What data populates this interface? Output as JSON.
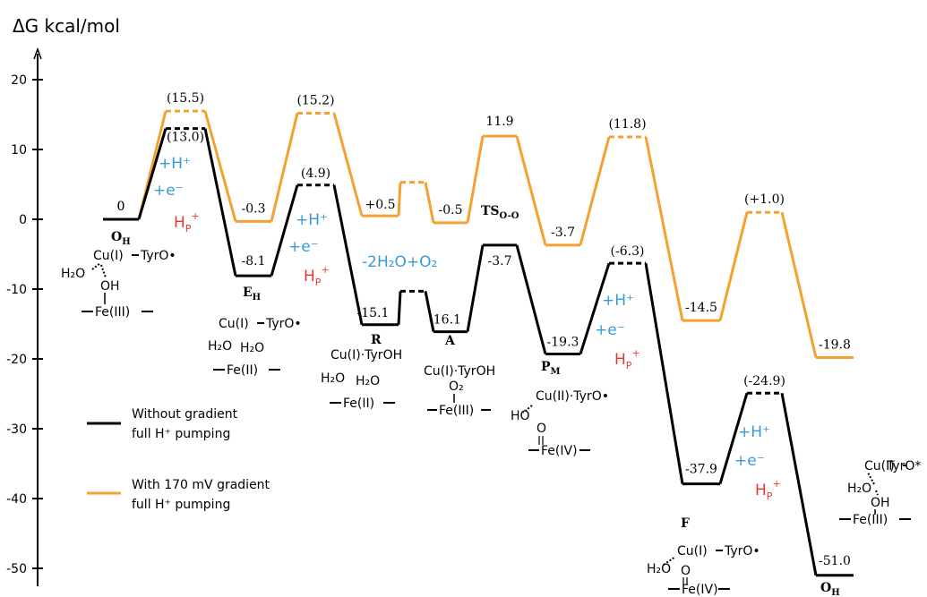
{
  "chart_data": {
    "type": "line",
    "ylabel": "ΔG kcal/mol",
    "ylim": [
      -52,
      25
    ],
    "yticks": [
      20,
      10,
      0,
      -10,
      -20,
      -30,
      -40,
      -50
    ],
    "series": [
      {
        "name": "Without gradient full H⁺ pumping",
        "color": "#000000",
        "levels": [
          {
            "state": "O_H",
            "value": 0,
            "label": "0"
          },
          {
            "state": "TS",
            "value": 13.0,
            "label": "(13.0)",
            "dashed": true
          },
          {
            "state": "E_H",
            "value": -8.1,
            "label": "-8.1"
          },
          {
            "state": "TS",
            "value": 4.9,
            "label": "(4.9)",
            "dashed": true
          },
          {
            "state": "R",
            "value": -15.1,
            "label": "-15.1"
          },
          {
            "state": "TS",
            "value": -10.3,
            "label": "",
            "dashed": true
          },
          {
            "state": "A",
            "value": -16.1,
            "label": "-16.1"
          },
          {
            "state": "TS_O-O",
            "value": -3.7,
            "label": "-3.7"
          },
          {
            "state": "P_M",
            "value": -19.3,
            "label": "-19.3"
          },
          {
            "state": "TS",
            "value": -6.3,
            "label": "(-6.3)",
            "dashed": true
          },
          {
            "state": "F",
            "value": -37.9,
            "label": "-37.9"
          },
          {
            "state": "TS",
            "value": -24.9,
            "label": "(-24.9)",
            "dashed": true
          },
          {
            "state": "O_H",
            "value": -51.0,
            "label": "-51.0"
          }
        ]
      },
      {
        "name": "With 170 mV gradient full H⁺ pumping",
        "color": "#f5a033",
        "levels": [
          {
            "state": "O_H",
            "value": 0,
            "label": "0"
          },
          {
            "state": "TS",
            "value": 15.5,
            "label": "(15.5)",
            "dashed": true
          },
          {
            "state": "E_H",
            "value": -0.3,
            "label": "-0.3"
          },
          {
            "state": "TS",
            "value": 15.2,
            "label": "(15.2)",
            "dashed": true
          },
          {
            "state": "R",
            "value": 0.5,
            "label": "+0.5"
          },
          {
            "state": "TS",
            "value": 5.3,
            "label": "",
            "dashed": true
          },
          {
            "state": "A",
            "value": -0.5,
            "label": "-0.5"
          },
          {
            "state": "TS_O-O",
            "value": 11.9,
            "label": "11.9"
          },
          {
            "state": "P_M",
            "value": -3.7,
            "label": "-3.7"
          },
          {
            "state": "TS",
            "value": 11.8,
            "label": "(11.8)",
            "dashed": true
          },
          {
            "state": "F",
            "value": -14.5,
            "label": "-14.5"
          },
          {
            "state": "TS",
            "value": 1.0,
            "label": "(+1.0)",
            "dashed": true
          },
          {
            "state": "O_H",
            "value": -19.8,
            "label": "-19.8"
          }
        ]
      }
    ]
  },
  "annotations": {
    "state_labels": [
      {
        "main": "O",
        "sub": "H"
      },
      {
        "main": "E",
        "sub": "H"
      },
      {
        "main": "R",
        "sub": ""
      },
      {
        "main": "A",
        "sub": ""
      },
      {
        "main": "TS",
        "sub": "O-O"
      },
      {
        "main": "P",
        "sub": "M"
      },
      {
        "main": "F",
        "sub": ""
      },
      {
        "main": "O",
        "sub": "H"
      }
    ],
    "proton_electron": [
      {
        "h": "+H⁺",
        "e": "+e⁻",
        "hp_main": "H",
        "hp_sub": "P",
        "hp_sup": "+"
      },
      {
        "h": "+H⁺",
        "e": "+e⁻",
        "hp_main": "H",
        "hp_sub": "P",
        "hp_sup": "+"
      },
      {
        "h": "+H⁺",
        "e": "+e⁻",
        "hp_main": "H",
        "hp_sub": "P",
        "hp_sup": "+"
      },
      {
        "h": "+H⁺",
        "e": "+e⁻",
        "hp_main": "H",
        "hp_sub": "P",
        "hp_sup": "+"
      }
    ],
    "water_oxygen": "-2H₂O+O₂",
    "structures": {
      "oh_start": {
        "cu": "Cu(I)",
        "tyr": "TyrO•",
        "h2o": "H₂O",
        "oh": "OH",
        "fe": "Fe(III)"
      },
      "eh": {
        "cu": "Cu(I)",
        "tyr": "TyrO•",
        "h2o_a": "H₂O",
        "h2o_b": "H₂O",
        "fe": "Fe(II)"
      },
      "r": {
        "cu_tyr": "Cu(I)·TyrOH",
        "h2o_a": "H₂O",
        "h2o_b": "H₂O",
        "fe": "Fe(II)"
      },
      "a": {
        "cu_tyr": "Cu(I)·TyrOH",
        "o2": "O₂",
        "fe": "Fe(III)"
      },
      "pm": {
        "cu_tyr": "Cu(II)·TyrO•",
        "ho": "HO",
        "o": "O",
        "fe": "Fe(IV)"
      },
      "f": {
        "cu": "Cu(I)",
        "tyr": "TyrO•",
        "h2o": "H₂O",
        "o": "O",
        "fe": "Fe(IV)"
      },
      "oh_end": {
        "cu": "Cu(I)",
        "tyr": "TyrO*",
        "h2o": "H₂O",
        "oh": "OH",
        "fe": "Fe(III)"
      }
    }
  },
  "legend": [
    {
      "line1": "Without gradient",
      "line2": "full H⁺ pumping",
      "color": "#000000"
    },
    {
      "line1": "With 170 mV gradient",
      "line2": "full H⁺ pumping",
      "color": "#f5a033"
    }
  ]
}
